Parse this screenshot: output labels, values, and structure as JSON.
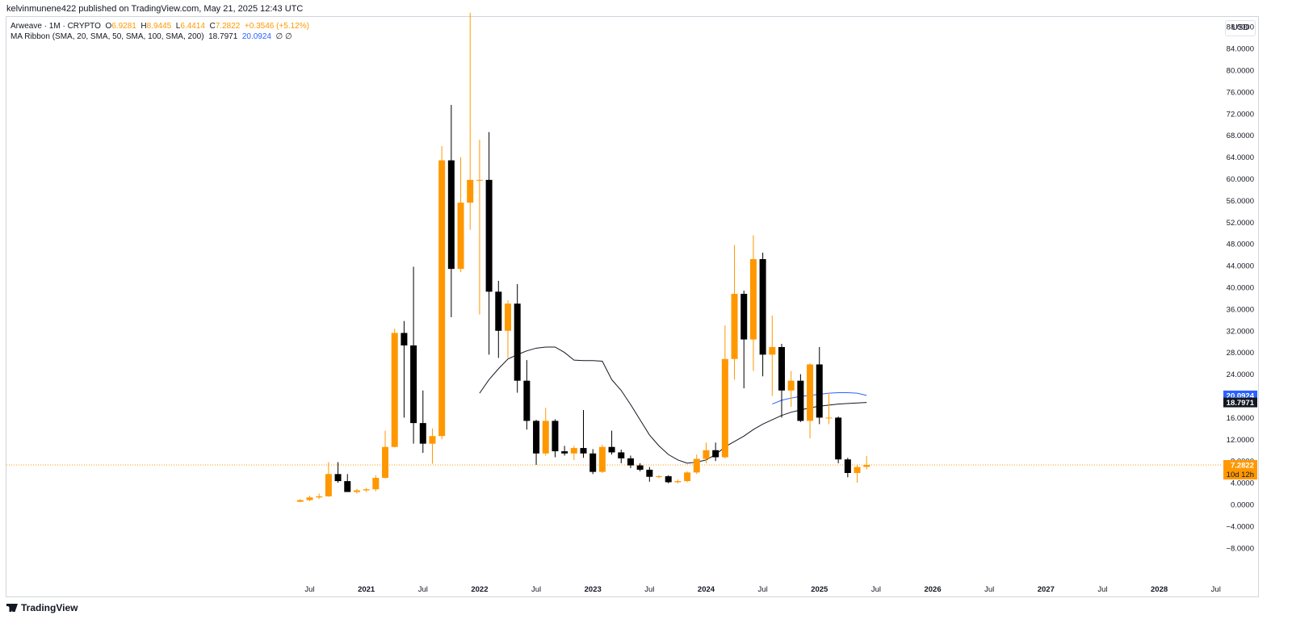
{
  "publisher": "kelvinmunene422 published on TradingView.com, May 21, 2025 12:43 UTC",
  "legend": {
    "symbol": "Arweave · 1M · CRYPTO",
    "o_label": "O",
    "o_value": "6.9281",
    "h_label": "H",
    "h_value": "8.9445",
    "l_label": "L",
    "l_value": "6.4414",
    "c_label": "C",
    "c_value": "7.2822",
    "change": "+0.3546 (+5.12%)",
    "indicator": "MA Ribbon (SMA, 20, SMA, 50, SMA, 100, SMA, 200)",
    "ma20_value": "18.7971",
    "ma50_value": "20.0924",
    "empty_values": "∅  ∅"
  },
  "currency_button": "USD",
  "logo_text": "TradingView",
  "colors": {
    "up": "#ff9800",
    "down": "#000000",
    "ma20": "#131722",
    "ma50": "#2962ff",
    "ma50_label_bg": "#2962ff",
    "ma20_label_bg": "#131722",
    "price_label_bg": "#ff9800"
  },
  "chart_data": {
    "type": "candlestick",
    "x_unit": "month",
    "y_ticks": [
      -8,
      -4,
      0,
      4,
      8,
      12,
      16,
      20,
      24,
      28,
      32,
      36,
      40,
      44,
      48,
      52,
      56,
      60,
      64,
      68,
      72,
      76,
      80,
      84,
      88
    ],
    "y_tick_labels": [
      "−8.0000",
      "−4.0000",
      "0.0000",
      "4.0000",
      "8.0000",
      "12.0000",
      "16.0000",
      "20.0000",
      "24.0000",
      "28.0000",
      "32.0000",
      "36.0000",
      "40.0000",
      "44.0000",
      "48.0000",
      "52.0000",
      "56.0000",
      "60.0000",
      "64.0000",
      "68.0000",
      "72.0000",
      "76.0000",
      "80.0000",
      "84.0000",
      "88.0000"
    ],
    "ylim": [
      -10,
      92
    ],
    "x_ticks": [
      {
        "label": "Jul",
        "month": "2020-07",
        "bold": false
      },
      {
        "label": "2021",
        "month": "2021-01",
        "bold": true
      },
      {
        "label": "Jul",
        "month": "2021-07",
        "bold": false
      },
      {
        "label": "2022",
        "month": "2022-01",
        "bold": true
      },
      {
        "label": "Jul",
        "month": "2022-07",
        "bold": false
      },
      {
        "label": "2023",
        "month": "2023-01",
        "bold": true
      },
      {
        "label": "Jul",
        "month": "2023-07",
        "bold": false
      },
      {
        "label": "2024",
        "month": "2024-01",
        "bold": true
      },
      {
        "label": "Jul",
        "month": "2024-07",
        "bold": false
      },
      {
        "label": "2025",
        "month": "2025-01",
        "bold": true
      },
      {
        "label": "Jul",
        "month": "2025-07",
        "bold": false
      },
      {
        "label": "2026",
        "month": "2026-01",
        "bold": true
      },
      {
        "label": "Jul",
        "month": "2026-07",
        "bold": false
      },
      {
        "label": "2027",
        "month": "2027-01",
        "bold": true
      },
      {
        "label": "Jul",
        "month": "2027-07",
        "bold": false
      },
      {
        "label": "2028",
        "month": "2028-01",
        "bold": true
      },
      {
        "label": "Jul",
        "month": "2028-07",
        "bold": false
      }
    ],
    "candles": [
      {
        "t": "2020-06",
        "o": 0.5,
        "h": 1.0,
        "l": 0.4,
        "c": 0.8
      },
      {
        "t": "2020-07",
        "o": 0.8,
        "h": 1.6,
        "l": 0.6,
        "c": 1.3
      },
      {
        "t": "2020-08",
        "o": 1.3,
        "h": 2.0,
        "l": 1.0,
        "c": 1.5
      },
      {
        "t": "2020-09",
        "o": 1.5,
        "h": 7.8,
        "l": 1.4,
        "c": 5.6
      },
      {
        "t": "2020-10",
        "o": 5.6,
        "h": 7.8,
        "l": 4.0,
        "c": 4.3
      },
      {
        "t": "2020-11",
        "o": 4.3,
        "h": 5.6,
        "l": 2.3,
        "c": 2.3
      },
      {
        "t": "2020-12",
        "o": 2.3,
        "h": 2.9,
        "l": 2.0,
        "c": 2.6
      },
      {
        "t": "2021-01",
        "o": 2.6,
        "h": 3.1,
        "l": 2.3,
        "c": 2.8
      },
      {
        "t": "2021-02",
        "o": 2.8,
        "h": 5.4,
        "l": 2.4,
        "c": 4.9
      },
      {
        "t": "2021-03",
        "o": 4.9,
        "h": 13.6,
        "l": 4.8,
        "c": 10.6
      },
      {
        "t": "2021-04",
        "o": 10.6,
        "h": 32.4,
        "l": 10.5,
        "c": 31.6
      },
      {
        "t": "2021-05",
        "o": 31.6,
        "h": 33.8,
        "l": 16.0,
        "c": 29.3
      },
      {
        "t": "2021-06",
        "o": 29.3,
        "h": 43.8,
        "l": 11.2,
        "c": 15.0
      },
      {
        "t": "2021-07",
        "o": 15.0,
        "h": 21.0,
        "l": 9.5,
        "c": 11.2
      },
      {
        "t": "2021-08",
        "o": 11.2,
        "h": 14.0,
        "l": 7.5,
        "c": 12.6
      },
      {
        "t": "2021-09",
        "o": 12.6,
        "h": 66.0,
        "l": 12.0,
        "c": 63.4
      },
      {
        "t": "2021-10",
        "o": 63.4,
        "h": 73.6,
        "l": 34.5,
        "c": 43.4
      },
      {
        "t": "2021-11",
        "o": 43.4,
        "h": 64.0,
        "l": 42.8,
        "c": 55.6
      },
      {
        "t": "2021-12",
        "o": 55.6,
        "h": 90.6,
        "l": 50.6,
        "c": 59.8
      },
      {
        "t": "2022-01",
        "o": 59.8,
        "h": 67.2,
        "l": 35.0,
        "c": 59.8
      },
      {
        "t": "2022-02",
        "o": 59.8,
        "h": 68.6,
        "l": 27.6,
        "c": 39.2
      },
      {
        "t": "2022-03",
        "o": 39.2,
        "h": 41.2,
        "l": 27.0,
        "c": 32.0
      },
      {
        "t": "2022-04",
        "o": 32.0,
        "h": 37.6,
        "l": 27.0,
        "c": 37.0
      },
      {
        "t": "2022-05",
        "o": 37.0,
        "h": 40.6,
        "l": 20.6,
        "c": 22.8
      },
      {
        "t": "2022-06",
        "o": 22.8,
        "h": 26.6,
        "l": 13.8,
        "c": 15.4
      },
      {
        "t": "2022-07",
        "o": 15.4,
        "h": 15.6,
        "l": 7.3,
        "c": 9.4
      },
      {
        "t": "2022-08",
        "o": 9.4,
        "h": 17.8,
        "l": 9.0,
        "c": 15.4
      },
      {
        "t": "2022-09",
        "o": 15.4,
        "h": 15.7,
        "l": 8.7,
        "c": 9.8
      },
      {
        "t": "2022-10",
        "o": 9.8,
        "h": 10.8,
        "l": 9.0,
        "c": 9.4
      },
      {
        "t": "2022-11",
        "o": 9.4,
        "h": 10.8,
        "l": 8.2,
        "c": 10.4
      },
      {
        "t": "2022-12",
        "o": 10.4,
        "h": 17.4,
        "l": 8.6,
        "c": 9.4
      },
      {
        "t": "2023-01",
        "o": 9.4,
        "h": 10.2,
        "l": 5.6,
        "c": 6.0
      },
      {
        "t": "2023-02",
        "o": 6.0,
        "h": 11.0,
        "l": 5.8,
        "c": 10.6
      },
      {
        "t": "2023-03",
        "o": 10.6,
        "h": 13.6,
        "l": 9.2,
        "c": 9.6
      },
      {
        "t": "2023-04",
        "o": 9.6,
        "h": 10.1,
        "l": 7.6,
        "c": 8.5
      },
      {
        "t": "2023-05",
        "o": 8.5,
        "h": 9.0,
        "l": 6.7,
        "c": 7.2
      },
      {
        "t": "2023-06",
        "o": 7.2,
        "h": 7.6,
        "l": 6.1,
        "c": 6.4
      },
      {
        "t": "2023-07",
        "o": 6.4,
        "h": 6.9,
        "l": 4.2,
        "c": 5.1
      },
      {
        "t": "2023-08",
        "o": 5.1,
        "h": 5.4,
        "l": 4.8,
        "c": 5.2
      },
      {
        "t": "2023-09",
        "o": 5.2,
        "h": 5.4,
        "l": 3.9,
        "c": 4.1
      },
      {
        "t": "2023-10",
        "o": 4.1,
        "h": 4.6,
        "l": 3.9,
        "c": 4.3
      },
      {
        "t": "2023-11",
        "o": 4.3,
        "h": 6.1,
        "l": 4.1,
        "c": 5.9
      },
      {
        "t": "2023-12",
        "o": 5.9,
        "h": 9.2,
        "l": 5.6,
        "c": 8.4
      },
      {
        "t": "2024-01",
        "o": 8.4,
        "h": 11.4,
        "l": 7.6,
        "c": 10.0
      },
      {
        "t": "2024-02",
        "o": 10.0,
        "h": 11.4,
        "l": 8.0,
        "c": 8.7
      },
      {
        "t": "2024-03",
        "o": 8.7,
        "h": 33.0,
        "l": 8.5,
        "c": 26.8
      },
      {
        "t": "2024-04",
        "o": 26.8,
        "h": 47.8,
        "l": 23.0,
        "c": 38.8
      },
      {
        "t": "2024-05",
        "o": 38.8,
        "h": 39.4,
        "l": 21.4,
        "c": 30.4
      },
      {
        "t": "2024-06",
        "o": 30.4,
        "h": 49.6,
        "l": 24.6,
        "c": 45.2
      },
      {
        "t": "2024-07",
        "o": 45.2,
        "h": 46.4,
        "l": 23.6,
        "c": 27.6
      },
      {
        "t": "2024-08",
        "o": 27.6,
        "h": 34.8,
        "l": 20.0,
        "c": 29.0
      },
      {
        "t": "2024-09",
        "o": 29.0,
        "h": 29.6,
        "l": 16.0,
        "c": 21.0
      },
      {
        "t": "2024-10",
        "o": 21.0,
        "h": 24.6,
        "l": 18.0,
        "c": 22.8
      },
      {
        "t": "2024-11",
        "o": 22.8,
        "h": 24.0,
        "l": 15.2,
        "c": 15.4
      },
      {
        "t": "2024-12",
        "o": 15.4,
        "h": 26.0,
        "l": 12.2,
        "c": 25.8
      },
      {
        "t": "2025-01",
        "o": 25.8,
        "h": 29.0,
        "l": 14.8,
        "c": 16.0
      },
      {
        "t": "2025-02",
        "o": 16.0,
        "h": 20.6,
        "l": 14.8,
        "c": 16.0
      },
      {
        "t": "2025-03",
        "o": 16.0,
        "h": 16.2,
        "l": 7.6,
        "c": 8.3
      },
      {
        "t": "2025-04",
        "o": 8.3,
        "h": 8.6,
        "l": 5.0,
        "c": 5.8
      },
      {
        "t": "2025-05",
        "o": 5.8,
        "h": 7.4,
        "l": 4.0,
        "c": 6.9
      },
      {
        "t": "2025-06",
        "o": 6.9281,
        "h": 8.9445,
        "l": 6.4414,
        "c": 7.2822
      }
    ],
    "ma20": [
      {
        "t": "2022-01",
        "v": 20.5
      },
      {
        "t": "2022-02",
        "v": 23.0
      },
      {
        "t": "2022-03",
        "v": 25.0
      },
      {
        "t": "2022-04",
        "v": 26.8
      },
      {
        "t": "2022-05",
        "v": 27.6
      },
      {
        "t": "2022-06",
        "v": 28.3
      },
      {
        "t": "2022-07",
        "v": 28.8
      },
      {
        "t": "2022-08",
        "v": 29.0
      },
      {
        "t": "2022-09",
        "v": 29.0
      },
      {
        "t": "2022-10",
        "v": 28.0
      },
      {
        "t": "2022-11",
        "v": 26.6
      },
      {
        "t": "2022-12",
        "v": 26.5
      },
      {
        "t": "2023-01",
        "v": 26.5
      },
      {
        "t": "2023-02",
        "v": 26.4
      },
      {
        "t": "2023-03",
        "v": 23.0
      },
      {
        "t": "2023-04",
        "v": 21.0
      },
      {
        "t": "2023-05",
        "v": 18.4
      },
      {
        "t": "2023-06",
        "v": 15.6
      },
      {
        "t": "2023-07",
        "v": 12.8
      },
      {
        "t": "2023-08",
        "v": 10.8
      },
      {
        "t": "2023-09",
        "v": 9.2
      },
      {
        "t": "2023-10",
        "v": 8.2
      },
      {
        "t": "2023-11",
        "v": 7.6
      },
      {
        "t": "2023-12",
        "v": 7.8
      },
      {
        "t": "2024-01",
        "v": 8.2
      },
      {
        "t": "2024-02",
        "v": 9.2
      },
      {
        "t": "2024-03",
        "v": 10.6
      },
      {
        "t": "2024-04",
        "v": 11.6
      },
      {
        "t": "2024-05",
        "v": 12.6
      },
      {
        "t": "2024-06",
        "v": 13.8
      },
      {
        "t": "2024-07",
        "v": 14.8
      },
      {
        "t": "2024-08",
        "v": 15.6
      },
      {
        "t": "2024-09",
        "v": 16.4
      },
      {
        "t": "2024-10",
        "v": 17.0
      },
      {
        "t": "2024-11",
        "v": 17.4
      },
      {
        "t": "2024-12",
        "v": 17.8
      },
      {
        "t": "2025-01",
        "v": 18.1
      },
      {
        "t": "2025-02",
        "v": 18.3
      },
      {
        "t": "2025-03",
        "v": 18.5
      },
      {
        "t": "2025-04",
        "v": 18.6
      },
      {
        "t": "2025-05",
        "v": 18.7
      },
      {
        "t": "2025-06",
        "v": 18.7971
      }
    ],
    "ma50": [
      {
        "t": "2024-08",
        "v": 18.5
      },
      {
        "t": "2024-09",
        "v": 19.2
      },
      {
        "t": "2024-10",
        "v": 19.6
      },
      {
        "t": "2024-11",
        "v": 19.9
      },
      {
        "t": "2024-12",
        "v": 20.1
      },
      {
        "t": "2025-01",
        "v": 20.3
      },
      {
        "t": "2025-02",
        "v": 20.5
      },
      {
        "t": "2025-03",
        "v": 20.6
      },
      {
        "t": "2025-04",
        "v": 20.6
      },
      {
        "t": "2025-05",
        "v": 20.5
      },
      {
        "t": "2025-06",
        "v": 20.0924
      }
    ],
    "last_price_label": "7.2822",
    "countdown_label": "10d 12h"
  }
}
